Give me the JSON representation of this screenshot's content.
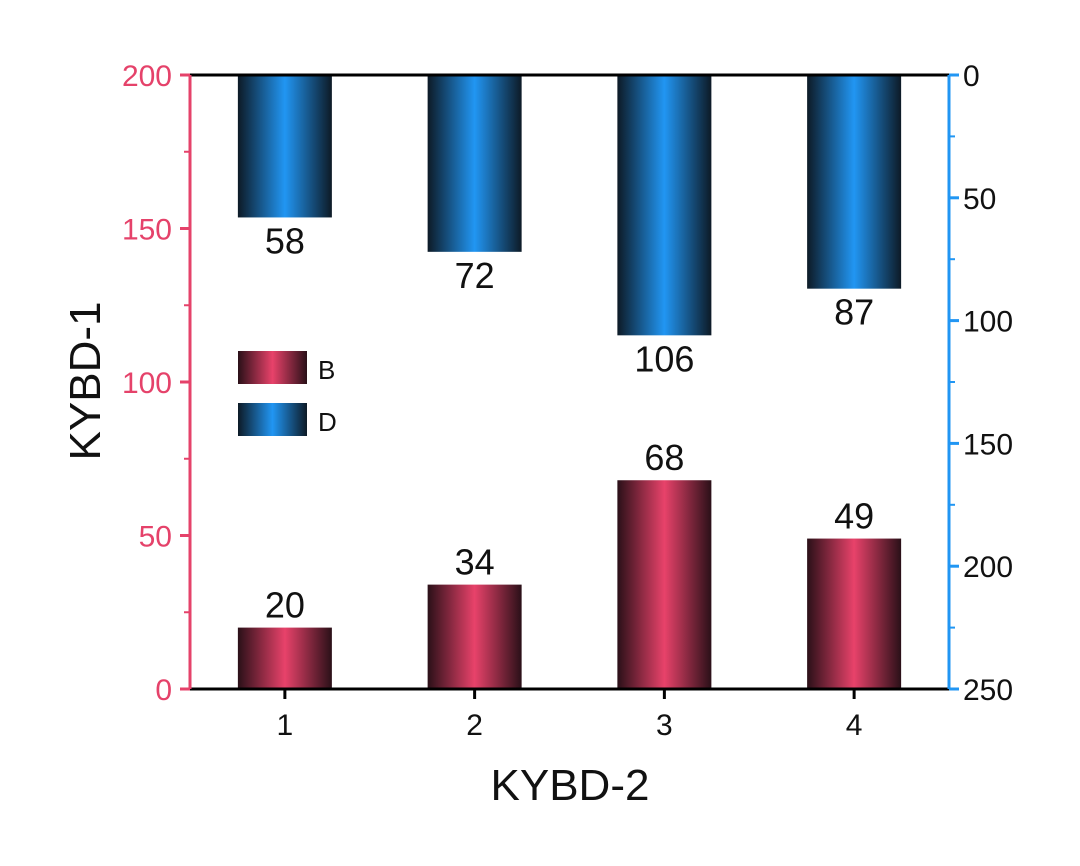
{
  "chart_data": {
    "type": "bar",
    "xlabel": "KYBD-2",
    "ylabel": "KYBD-1",
    "categories": [
      "1",
      "2",
      "3",
      "4"
    ],
    "left_axis": {
      "range": [
        0,
        200
      ],
      "ticks": [
        0,
        50,
        100,
        150,
        200
      ],
      "color": "#e5426a"
    },
    "right_axis": {
      "range": [
        0,
        250
      ],
      "ticks": [
        0,
        50,
        100,
        150,
        200,
        250
      ],
      "inverted": true,
      "color": "#2196f3"
    },
    "series": [
      {
        "name": "B",
        "axis": "left",
        "values": [
          20,
          34,
          68,
          49
        ],
        "color": "#e8426a",
        "dark": "#2a1018"
      },
      {
        "name": "D",
        "axis": "right",
        "values": [
          58,
          72,
          106,
          87
        ],
        "color": "#2196f3",
        "dark": "#0d1a26"
      }
    ],
    "data_labels": {
      "B": [
        "20",
        "34",
        "68",
        "49"
      ],
      "D": [
        "58",
        "72",
        "106",
        "87"
      ]
    },
    "legend": {
      "placement": "upper-left",
      "items": [
        "B",
        "D"
      ]
    },
    "grid": false
  }
}
